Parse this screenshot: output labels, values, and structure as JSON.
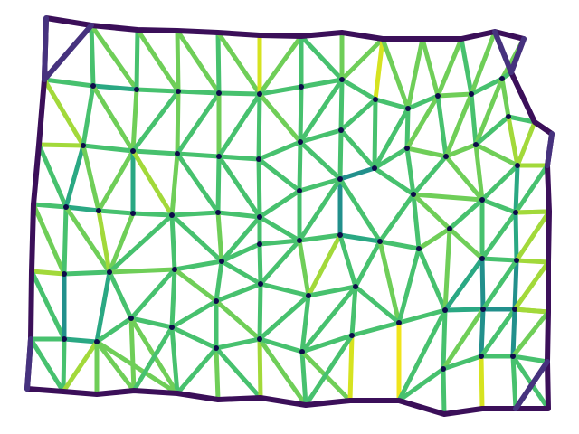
{
  "diagram": {
    "type": "triangular-mesh",
    "background": "#ffffff",
    "node_color": "#0d0a4a",
    "palette": {
      "boundary": "#3b0f59",
      "boundary_corner": "#46327e",
      "teal": "#22908c",
      "teal_green": "#2aa883",
      "green": "#47c16e",
      "light_green": "#6fce58",
      "lime": "#a2d93a",
      "yellow": "#d6e320",
      "bright_yellow": "#f0e41c"
    }
  }
}
